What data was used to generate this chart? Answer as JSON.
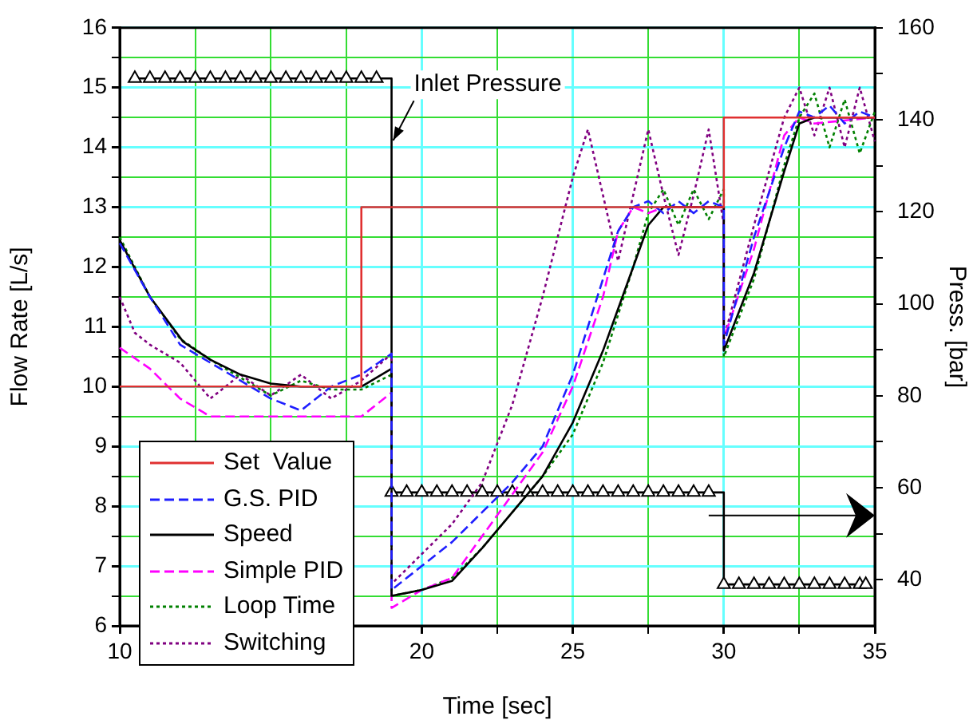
{
  "chart_data": {
    "type": "line",
    "xlabel": "Time [sec]",
    "ylabel": "Flow Rate [L/s]",
    "y2label": "Press. [bar]",
    "xlim": [
      10,
      35
    ],
    "xticks": [
      10,
      {
        "value": 12.5,
        "label": null
      },
      {
        "value": 15,
        "label": null
      },
      {
        "value": 17.5,
        "label": null
      },
      20,
      {
        "value": 22.5,
        "label": null
      },
      25,
      {
        "value": 27.5,
        "label": null
      },
      30,
      {
        "value": 32.5,
        "label": null
      },
      35
    ],
    "ylim": [
      6,
      16
    ],
    "yticks": [
      6,
      {
        "value": 6.5,
        "label": null
      },
      7,
      {
        "value": 7.5,
        "label": null
      },
      8,
      {
        "value": 8.5,
        "label": null
      },
      9,
      {
        "value": 9.5,
        "label": null
      },
      10,
      {
        "value": 10.5,
        "label": null
      },
      11,
      {
        "value": 11.5,
        "label": null
      },
      12,
      {
        "value": 12.5,
        "label": null
      },
      13,
      {
        "value": 13.5,
        "label": null
      },
      14,
      {
        "value": 14.5,
        "label": null
      },
      15,
      {
        "value": 15.5,
        "label": null
      },
      16
    ],
    "y2lim": [
      30,
      160
    ],
    "y2ticks": [
      40,
      {
        "value": 50,
        "label": null
      },
      60,
      {
        "value": 70,
        "label": null
      },
      80,
      {
        "value": 90,
        "label": null
      },
      100,
      {
        "value": 110,
        "label": null
      },
      120,
      {
        "value": 130,
        "label": null
      },
      140,
      {
        "value": 150,
        "label": null
      },
      160
    ],
    "grid": true,
    "legend": "bottom left",
    "marker": "none",
    "series": [
      {
        "name": "Set  Value",
        "type": "step",
        "color": "#e03030",
        "line_style": "solid",
        "x": [
          10,
          18,
          30,
          35
        ],
        "values": [
          10,
          13,
          14.5,
          14.5
        ]
      },
      {
        "name": "G.S. PID",
        "color": "#1f1fff",
        "line_style": "dashed",
        "x": [
          10,
          11,
          12,
          13,
          14,
          15,
          16,
          17,
          18,
          19,
          19,
          20,
          21,
          22,
          23,
          24,
          25,
          26,
          26.5,
          27,
          27.5,
          28,
          28.5,
          29,
          29.5,
          30,
          30,
          31,
          32,
          32.5,
          33,
          33.5,
          34,
          34.5,
          35
        ],
        "values": [
          12.4,
          11.5,
          10.7,
          10.4,
          10.1,
          9.8,
          9.6,
          10.0,
          10.2,
          10.55,
          6.6,
          7.0,
          7.4,
          7.9,
          8.4,
          9.0,
          10.2,
          11.8,
          12.6,
          13.0,
          13.1,
          12.9,
          13.1,
          12.9,
          13.1,
          13.0,
          10.7,
          12.5,
          14.0,
          14.6,
          14.5,
          14.7,
          14.4,
          14.6,
          14.5
        ]
      },
      {
        "name": "Speed",
        "color": "#000000",
        "line_style": "solid",
        "x": [
          10,
          11,
          12.1,
          13,
          14,
          15,
          16,
          17,
          18,
          19,
          19,
          20,
          21,
          22,
          23,
          24,
          25,
          26,
          27,
          27.5,
          28,
          29,
          30,
          30,
          31,
          32,
          32.5,
          33,
          35
        ],
        "values": [
          12.45,
          11.5,
          10.75,
          10.45,
          10.2,
          10.05,
          10.0,
          10.0,
          10.0,
          10.3,
          6.5,
          6.6,
          6.75,
          7.3,
          7.9,
          8.5,
          9.4,
          10.6,
          12.0,
          12.7,
          13.0,
          13.0,
          13.0,
          10.6,
          11.9,
          13.6,
          14.4,
          14.5,
          14.5
        ]
      },
      {
        "name": "Simple PID",
        "color": "#ff00ff",
        "line_style": "dashed",
        "x": [
          10,
          11,
          12,
          13,
          14,
          15,
          16,
          17,
          18,
          19,
          19,
          20,
          21,
          22,
          23,
          24,
          25,
          26,
          26.5,
          27,
          27.5,
          28,
          30,
          30,
          31,
          32,
          32.5,
          33,
          35
        ],
        "values": [
          10.65,
          10.3,
          9.8,
          9.5,
          9.5,
          9.5,
          9.5,
          9.5,
          9.5,
          9.9,
          6.3,
          6.6,
          6.8,
          7.5,
          8.2,
          8.9,
          10.0,
          11.5,
          12.6,
          13.0,
          12.9,
          13.0,
          13.0,
          10.8,
          12.3,
          14.2,
          14.5,
          14.4,
          14.5
        ]
      },
      {
        "name": "Loop Time",
        "color": "#008000",
        "line_style": "dotted",
        "x": [
          10,
          11,
          12,
          13,
          14,
          15,
          16,
          17,
          18,
          19,
          19,
          20,
          21,
          22,
          23,
          24,
          25,
          26,
          27,
          27.5,
          28,
          28.5,
          29,
          29.5,
          30,
          30,
          31,
          32,
          32.5,
          33,
          33.5,
          34,
          34.5,
          35
        ],
        "values": [
          12.5,
          11.5,
          10.8,
          10.45,
          10.15,
          9.85,
          10.1,
          9.95,
          9.95,
          10.2,
          6.5,
          6.6,
          6.8,
          7.3,
          7.9,
          8.5,
          9.2,
          10.4,
          12.0,
          12.9,
          13.3,
          12.7,
          13.3,
          12.8,
          13.3,
          10.5,
          11.8,
          13.7,
          14.5,
          14.9,
          14.0,
          14.8,
          13.9,
          14.6
        ]
      },
      {
        "name": "Switching",
        "color": "#800080",
        "line_style": "dotted",
        "x": [
          10,
          10.5,
          11,
          12,
          13,
          14,
          15,
          16,
          17,
          18,
          19,
          19,
          20,
          21,
          22,
          23,
          24,
          25,
          25.5,
          26,
          26.5,
          27,
          27.5,
          28,
          28.5,
          29,
          29.5,
          30,
          30,
          31,
          32,
          32.5,
          33,
          33.5,
          34,
          34.5,
          35
        ],
        "values": [
          11.5,
          10.9,
          10.7,
          10.4,
          9.8,
          10.2,
          9.85,
          10.2,
          9.8,
          10.1,
          10.55,
          6.7,
          7.2,
          7.7,
          8.4,
          9.7,
          11.5,
          13.5,
          14.3,
          13.2,
          12.1,
          13.2,
          14.3,
          13.2,
          12.2,
          13.2,
          14.3,
          12.7,
          10.8,
          12.7,
          14.5,
          15.0,
          14.2,
          15.0,
          14.0,
          15.0,
          14.1
        ]
      },
      {
        "name": "Inlet Pressure",
        "type": "step",
        "axis": "y2",
        "color": "#000000",
        "line_style": "solid",
        "marker": "triangle",
        "x": [
          10.5,
          11,
          11.5,
          12,
          12.5,
          13,
          13.5,
          14,
          14.5,
          15,
          15.5,
          16,
          16.5,
          17,
          17.5,
          18,
          18.5,
          19,
          19.5,
          20,
          20.5,
          21,
          21.5,
          22,
          22.5,
          23,
          23.5,
          24,
          24.5,
          25,
          25.5,
          26,
          26.5,
          27,
          27.5,
          28,
          28.5,
          29,
          29.5,
          30,
          30.5,
          31,
          31.5,
          32,
          32.5,
          33,
          33.5,
          34,
          34.5,
          34.7
        ],
        "values": [
          149,
          149,
          149,
          149,
          149,
          149,
          149,
          149,
          149,
          149,
          149,
          149,
          149,
          149,
          149,
          149,
          149,
          59,
          59,
          59,
          59,
          59,
          59,
          59,
          59,
          59,
          59,
          59,
          59,
          59,
          59,
          59,
          59,
          59,
          59,
          59,
          59,
          59,
          59,
          39,
          39,
          39,
          39,
          39,
          39,
          39,
          39,
          39,
          39,
          39
        ]
      }
    ]
  }
}
